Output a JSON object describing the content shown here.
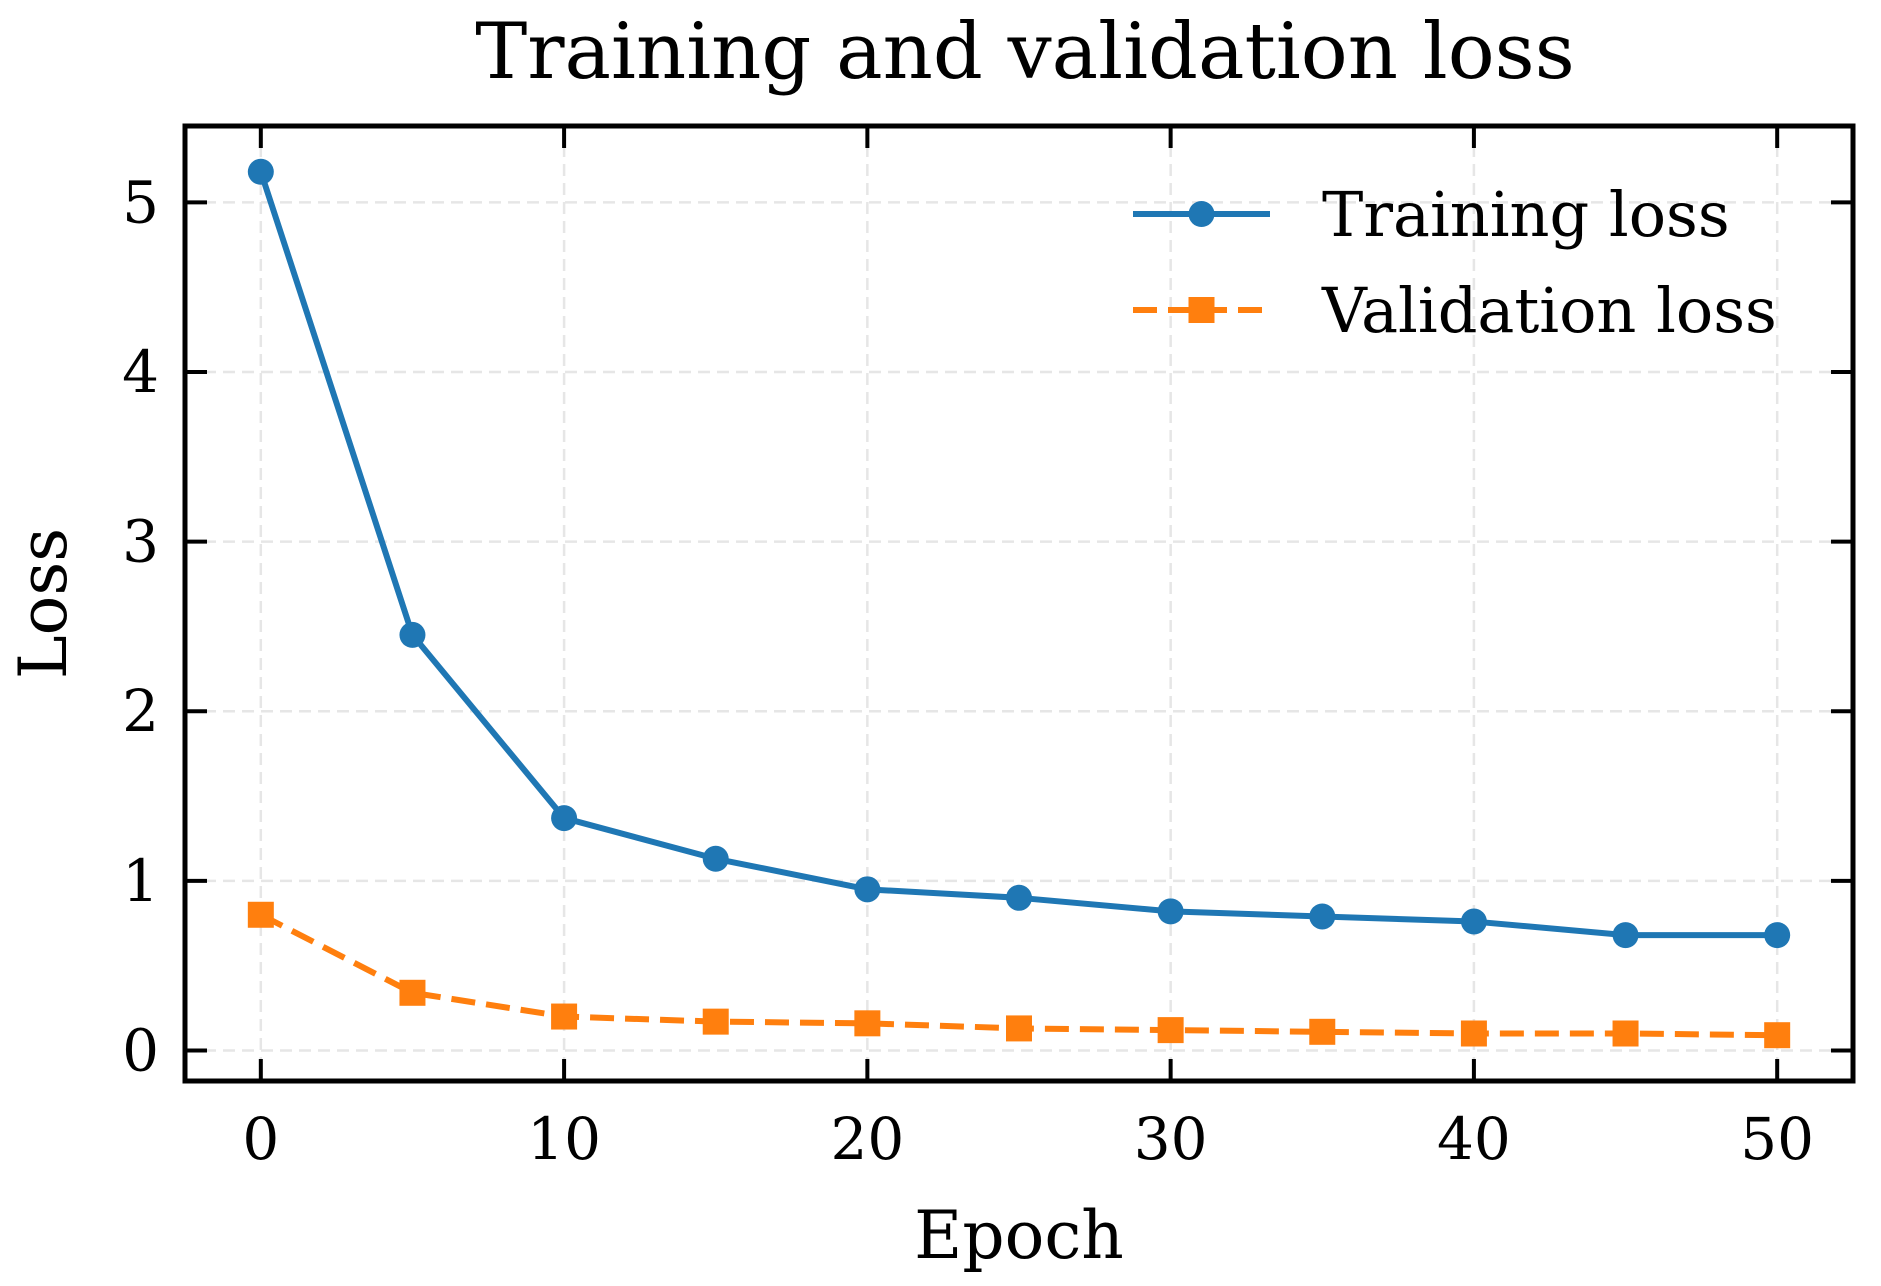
{
  "chart_data": {
    "type": "line",
    "title": "Training and validation loss",
    "xlabel": "Epoch",
    "ylabel": "Loss",
    "xlim": [
      -2.5,
      52.5
    ],
    "ylim": [
      -0.18,
      5.45
    ],
    "xticks": [
      0,
      10,
      20,
      30,
      40,
      50
    ],
    "yticks": [
      0,
      1,
      2,
      3,
      4,
      5
    ],
    "grid": true,
    "legend_position": "top-right",
    "x": [
      0,
      5,
      10,
      15,
      20,
      25,
      30,
      35,
      40,
      45,
      50
    ],
    "series": [
      {
        "name": "Training loss",
        "color": "#1f77b4",
        "marker": "circle",
        "linestyle": "solid",
        "values": [
          5.18,
          2.45,
          1.37,
          1.13,
          0.95,
          0.9,
          0.82,
          0.79,
          0.76,
          0.68,
          0.68
        ]
      },
      {
        "name": "Validation loss",
        "color": "#ff7f0e",
        "marker": "square",
        "linestyle": "dashed",
        "values": [
          0.8,
          0.34,
          0.2,
          0.17,
          0.16,
          0.13,
          0.12,
          0.11,
          0.1,
          0.1,
          0.09
        ]
      }
    ]
  }
}
